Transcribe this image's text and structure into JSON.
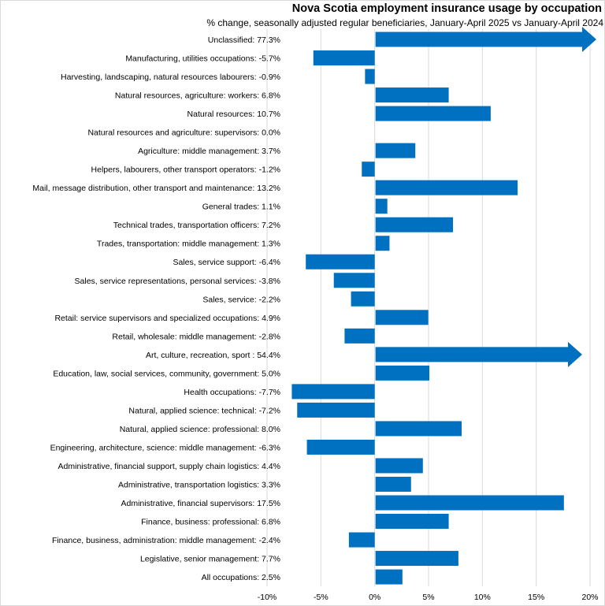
{
  "chart_data": {
    "type": "bar",
    "orientation": "horizontal",
    "title": "Nova Scotia employment insurance usage by occupation",
    "subtitle": "% change, seasonally adjusted regular beneficiaries, January-April 2025 vs January-April 2024",
    "categories": [
      "Unclassified",
      "Manufacturing, utilities occupations",
      "Harvesting, landscaping, natural resources labourers",
      "Natural resources, agriculture: workers",
      "Natural resources",
      "Natural resources and agriculture: supervisors",
      "Agriculture: middle management",
      "Helpers, labourers, other transport operators",
      "Mail, message distribution, other transport and maintenance",
      "General trades",
      "Technical trades, transportation officers",
      "Trades, transportation: middle management",
      "Sales, service support",
      "Sales, service representations, personal services",
      "Sales, service",
      "Retail: service supervisors and specialized occupations",
      "Retail, wholesale: middle management",
      "Art, culture, recreation, sport ",
      "Education, law, social services, community, government",
      "Health occupations",
      "Natural, applied science: technical",
      "Natural, applied science: professional",
      "Engineering, architecture, science: middle management",
      "Administrative, financial support, supply chain logistics",
      "Administrative, transportation logistics",
      "Administrative, financial supervisors",
      "Finance, business: professional",
      "Finance, business, administration: middle management",
      "Legislative, senior management",
      "All occupations"
    ],
    "values": [
      77.3,
      -5.7,
      -0.9,
      6.8,
      10.7,
      0.0,
      3.7,
      -1.2,
      13.2,
      1.1,
      7.2,
      1.3,
      -6.4,
      -3.8,
      -2.2,
      4.9,
      -2.8,
      54.4,
      5.0,
      -7.7,
      -7.2,
      8.0,
      -6.3,
      4.4,
      3.3,
      17.5,
      6.8,
      -2.4,
      7.7,
      2.5
    ],
    "value_labels": [
      "77.3%",
      "-5.7%",
      "-0.9%",
      "6.8%",
      "10.7%",
      "0.0%",
      "3.7%",
      "-1.2%",
      "13.2%",
      "1.1%",
      "7.2%",
      "1.3%",
      "-6.4%",
      "-3.8%",
      "-2.2%",
      "4.9%",
      "-2.8%",
      "54.4%",
      "5.0%",
      "-7.7%",
      "-7.2%",
      "8.0%",
      "-6.3%",
      "4.4%",
      "3.3%",
      "17.5%",
      "6.8%",
      "-2.4%",
      "7.7%",
      "2.5%"
    ],
    "xlim": [
      -10,
      20
    ],
    "xticks": [
      "-10%",
      "-5%",
      "0%",
      "5%",
      "10%",
      "15%",
      "20%"
    ],
    "xtick_values": [
      -10,
      -5,
      0,
      5,
      10,
      15,
      20
    ],
    "grid": "vertical",
    "bar_color": "#0070C0",
    "grid_color": "#d9d9d9",
    "truncated_with_arrow": [
      "Unclassified",
      "Art, culture, recreation, sport "
    ]
  }
}
